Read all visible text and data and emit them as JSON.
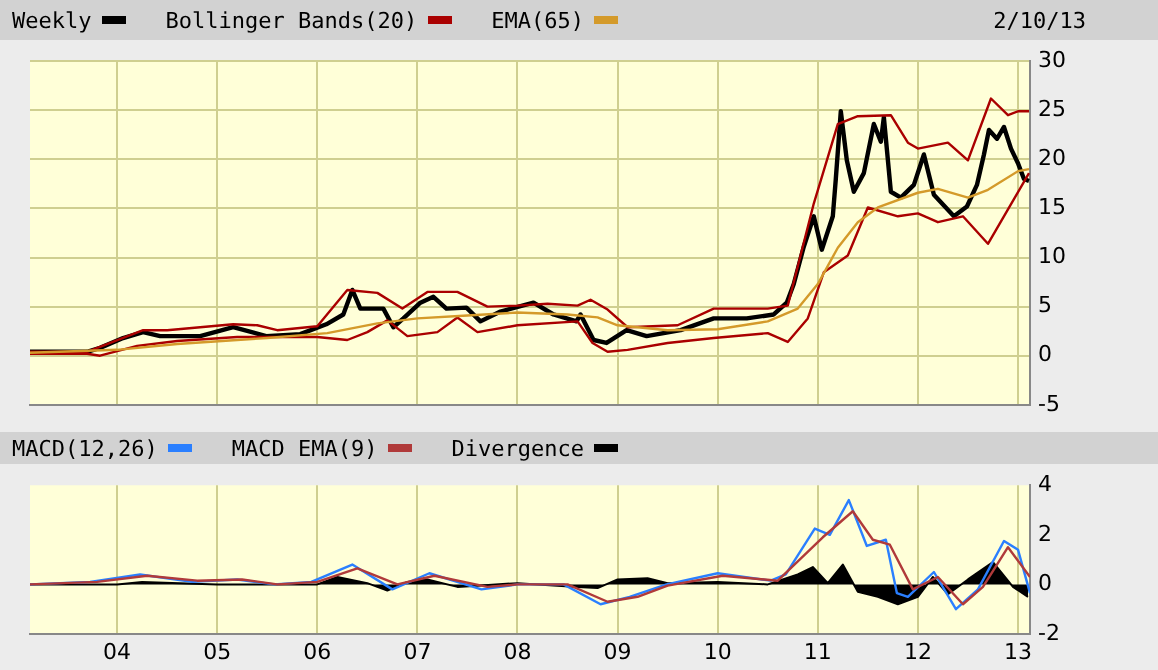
{
  "chart_data": [
    {
      "type": "line",
      "legend": "top left",
      "grid": true,
      "tick_labels": "y",
      "annotations": [
        "2/10/13"
      ],
      "xlim": [
        2003.13,
        2013.12
      ],
      "xticks": [
        {
          "value": 2004,
          "label": null
        },
        {
          "value": 2005,
          "label": null
        },
        {
          "value": 2006,
          "label": null
        },
        {
          "value": 2007,
          "label": null
        },
        {
          "value": 2008,
          "label": null
        },
        {
          "value": 2009,
          "label": null
        },
        {
          "value": 2010,
          "label": null
        },
        {
          "value": 2011,
          "label": null
        },
        {
          "value": 2012,
          "label": null
        },
        {
          "value": 2013,
          "label": null
        }
      ],
      "ylim": [
        -5,
        30
      ],
      "yticks": [
        -5,
        0,
        5,
        10,
        15,
        20,
        25,
        30
      ],
      "series": [
        {
          "name": "Weekly",
          "color": "#000000",
          "x": [
            2003.13,
            2003.7,
            2003.83,
            2004.06,
            2004.26,
            2004.43,
            2004.83,
            2005.16,
            2005.49,
            2005.83,
            2006.09,
            2006.26,
            2006.35,
            2006.43,
            2006.66,
            2006.76,
            2006.86,
            2007.03,
            2007.16,
            2007.29,
            2007.49,
            2007.63,
            2007.83,
            2008.16,
            2008.36,
            2008.59,
            2008.63,
            2008.76,
            2008.89,
            2009.09,
            2009.29,
            2009.63,
            2009.96,
            2010.29,
            2010.56,
            2010.69,
            2010.76,
            2010.86,
            2010.96,
            2011.04,
            2011.15,
            2011.18,
            2011.23,
            2011.29,
            2011.36,
            2011.46,
            2011.56,
            2011.63,
            2011.66,
            2011.73,
            2011.83,
            2011.96,
            2012.06,
            2012.16,
            2012.36,
            2012.49,
            2012.59,
            2012.66,
            2012.71,
            2012.79,
            2012.86,
            2012.93,
            2013.0,
            2013.06,
            2013.11
          ],
          "values": [
            0.4,
            0.4,
            0.8,
            1.8,
            2.4,
            2.0,
            2.0,
            2.9,
            2.0,
            2.2,
            3.2,
            4.2,
            6.7,
            4.8,
            4.8,
            2.9,
            3.8,
            5.4,
            6.0,
            4.8,
            4.9,
            3.5,
            4.5,
            5.4,
            4.2,
            3.5,
            4.2,
            1.6,
            1.3,
            2.6,
            2.0,
            2.6,
            3.8,
            3.8,
            4.2,
            5.4,
            7.3,
            11.1,
            14.2,
            10.8,
            14.2,
            18.0,
            24.9,
            19.9,
            16.7,
            18.6,
            23.6,
            21.8,
            24.3,
            16.7,
            16.1,
            17.4,
            20.5,
            16.4,
            14.2,
            15.2,
            17.4,
            20.5,
            23.0,
            22.1,
            23.3,
            21.1,
            19.6,
            18.0,
            17.8
          ]
        },
        {
          "name": "Bollinger Bands(20)",
          "color": "#aa0000",
          "x": [
            2003.13,
            2003.7,
            2004.26,
            2004.5,
            2005.16,
            2005.4,
            2005.6,
            2006.0,
            2006.3,
            2006.6,
            2006.85,
            2007.1,
            2007.4,
            2007.7,
            2008.0,
            2008.3,
            2008.6,
            2008.73,
            2008.9,
            2009.1,
            2009.6,
            2009.96,
            2010.5,
            2010.7,
            2010.96,
            2011.2,
            2011.4,
            2011.73,
            2011.9,
            2012.0,
            2012.3,
            2012.5,
            2012.73,
            2012.9,
            2013.0,
            2013.11
          ],
          "values": [
            0.4,
            0.4,
            2.6,
            2.6,
            3.2,
            3.1,
            2.6,
            3.0,
            6.7,
            6.4,
            4.8,
            6.5,
            6.5,
            5.0,
            5.1,
            5.3,
            5.1,
            5.7,
            4.7,
            2.9,
            3.1,
            4.8,
            4.8,
            5.1,
            15.5,
            23.6,
            24.4,
            24.5,
            21.7,
            21.1,
            21.7,
            19.9,
            26.2,
            24.5,
            24.9,
            24.9
          ]
        },
        {
          "color": "#aa0000",
          "x": [
            2003.13,
            2003.7,
            2003.83,
            2004.2,
            2004.6,
            2005.2,
            2005.6,
            2006.0,
            2006.3,
            2006.5,
            2006.7,
            2006.9,
            2007.2,
            2007.4,
            2007.6,
            2008.0,
            2008.6,
            2008.75,
            2008.9,
            2009.1,
            2009.5,
            2009.96,
            2010.5,
            2010.7,
            2010.9,
            2011.06,
            2011.3,
            2011.5,
            2011.8,
            2012.0,
            2012.2,
            2012.45,
            2012.7,
            2012.9,
            2013.11
          ],
          "values": [
            0.2,
            0.2,
            0,
            1.0,
            1.5,
            1.9,
            1.9,
            1.9,
            1.6,
            2.4,
            3.6,
            2.0,
            2.4,
            3.9,
            2.4,
            3.1,
            3.5,
            1.3,
            0.4,
            0.6,
            1.3,
            1.8,
            2.3,
            1.4,
            3.8,
            8.5,
            10.2,
            15.1,
            14.2,
            14.5,
            13.6,
            14.2,
            11.4,
            14.9,
            18.6
          ]
        },
        {
          "name": "EMA(65)",
          "color": "#d49a2a",
          "x": [
            2003.13,
            2004.0,
            2004.6,
            2005.5,
            2006.1,
            2006.6,
            2007.0,
            2007.5,
            2008.0,
            2008.5,
            2008.8,
            2009.0,
            2009.5,
            2010.0,
            2010.5,
            2010.8,
            2011.0,
            2011.2,
            2011.4,
            2011.6,
            2012.0,
            2012.2,
            2012.5,
            2012.7,
            2013.0,
            2013.11
          ],
          "values": [
            0.3,
            0.6,
            1.2,
            1.8,
            2.3,
            3.3,
            3.8,
            4.1,
            4.4,
            4.2,
            3.9,
            3.1,
            2.6,
            2.7,
            3.5,
            4.8,
            7.3,
            11.0,
            13.6,
            15.1,
            16.6,
            17.0,
            16.1,
            16.9,
            18.8,
            19.0
          ]
        }
      ]
    },
    {
      "type": "line",
      "legend": "top left",
      "grid": "x",
      "xlim": [
        2003.13,
        2013.12
      ],
      "xticks": [
        {
          "value": 2004,
          "label": "04"
        },
        {
          "value": 2005,
          "label": "05"
        },
        {
          "value": 2006,
          "label": "06"
        },
        {
          "value": 2007,
          "label": "07"
        },
        {
          "value": 2008,
          "label": "08"
        },
        {
          "value": 2009,
          "label": "09"
        },
        {
          "value": 2010,
          "label": "10"
        },
        {
          "value": 2011,
          "label": "11"
        },
        {
          "value": 2012,
          "label": "12"
        },
        {
          "value": 2013,
          "label": "13"
        }
      ],
      "ylim": [
        -2,
        4
      ],
      "yticks": [
        -2,
        0,
        2,
        4
      ],
      "series": [
        {
          "name": "MACD(12,26)",
          "color": "#2a7fff",
          "x": [
            2003.13,
            2003.73,
            2004.23,
            2004.75,
            2005.2,
            2005.57,
            2005.94,
            2006.35,
            2006.75,
            2007.12,
            2007.64,
            2008.0,
            2008.46,
            2008.83,
            2009.12,
            2009.49,
            2010.0,
            2010.53,
            2010.68,
            2010.97,
            2011.12,
            2011.31,
            2011.49,
            2011.68,
            2011.79,
            2011.9,
            2012.16,
            2012.38,
            2012.6,
            2012.86,
            2013.0,
            2013.12
          ],
          "values": [
            0,
            0.1,
            0.4,
            0.1,
            0.2,
            0,
            0.1,
            0.8,
            -0.2,
            0.45,
            -0.2,
            0,
            0,
            -0.8,
            -0.5,
            0,
            0.45,
            0.15,
            0.4,
            2.25,
            2.0,
            3.4,
            1.55,
            1.8,
            -0.35,
            -0.5,
            0.5,
            -1.0,
            -0.2,
            1.75,
            1.4,
            -0.35
          ]
        },
        {
          "name": "MACD EMA(9)",
          "color": "#b03a3a",
          "x": [
            2003.13,
            2003.8,
            2004.3,
            2004.8,
            2005.25,
            2005.6,
            2006.0,
            2006.4,
            2006.8,
            2007.17,
            2007.7,
            2008.0,
            2008.5,
            2008.9,
            2009.2,
            2009.5,
            2010.05,
            2010.6,
            2011.05,
            2011.35,
            2011.55,
            2011.72,
            2011.95,
            2012.2,
            2012.45,
            2012.65,
            2012.9,
            2013.12
          ],
          "values": [
            0,
            0.1,
            0.35,
            0.15,
            0.2,
            0,
            0.1,
            0.65,
            0,
            0.35,
            -0.1,
            0,
            0,
            -0.7,
            -0.5,
            -0.05,
            0.35,
            0.15,
            1.9,
            2.95,
            1.8,
            1.6,
            -0.2,
            0.3,
            -0.8,
            -0.1,
            1.5,
            0.3
          ]
        },
        {
          "name": "Divergence",
          "type": "area",
          "color": "#000000",
          "x": [
            2003.13,
            2004.0,
            2004.25,
            2005.0,
            2006.0,
            2006.2,
            2006.5,
            2006.7,
            2006.9,
            2007.1,
            2007.4,
            2007.6,
            2008.0,
            2008.6,
            2008.8,
            2009.0,
            2009.3,
            2009.5,
            2010.0,
            2010.5,
            2010.8,
            2010.95,
            2011.1,
            2011.25,
            2011.4,
            2011.6,
            2011.8,
            2012.0,
            2012.15,
            2012.3,
            2012.5,
            2012.75,
            2012.95,
            2013.1
          ],
          "values": [
            0,
            0,
            0.1,
            0,
            0,
            0.3,
            0.05,
            -0.25,
            0.1,
            0.2,
            -0.1,
            -0.05,
            0.05,
            -0.1,
            -0.15,
            0.2,
            0.25,
            0.05,
            0.1,
            0,
            0.4,
            0.7,
            0.05,
            0.8,
            -0.3,
            -0.5,
            -0.8,
            -0.5,
            0.3,
            -0.4,
            0.2,
            0.9,
            -0.1,
            -0.5
          ]
        }
      ]
    }
  ]
}
